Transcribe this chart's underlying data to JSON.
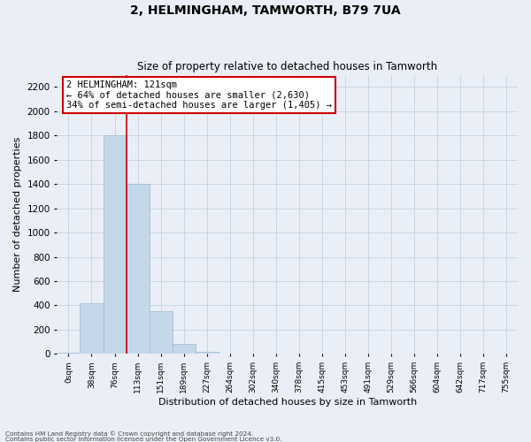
{
  "title": "2, HELMINGHAM, TAMWORTH, B79 7UA",
  "subtitle": "Size of property relative to detached houses in Tamworth",
  "xlabel": "Distribution of detached houses by size in Tamworth",
  "ylabel": "Number of detached properties",
  "bar_values": [
    10,
    420,
    1800,
    1400,
    350,
    80,
    20,
    5,
    0,
    0,
    0,
    0,
    0,
    0,
    0,
    0,
    0,
    0,
    0,
    0
  ],
  "x_labels": [
    "0sqm",
    "38sqm",
    "76sqm",
    "113sqm",
    "151sqm",
    "189sqm",
    "227sqm",
    "264sqm",
    "302sqm",
    "340sqm",
    "378sqm",
    "415sqm",
    "453sqm",
    "491sqm",
    "529sqm",
    "566sqm",
    "604sqm",
    "642sqm",
    "717sqm",
    "755sqm"
  ],
  "bar_color": "#c5d8ea",
  "bar_edgecolor": "#9ab8d0",
  "grid_color": "#ccd6e4",
  "vline_position": 2.5,
  "vline_color": "#cc0000",
  "annotation_text": "2 HELMINGHAM: 121sqm\n← 64% of detached houses are smaller (2,630)\n34% of semi-detached houses are larger (1,405) →",
  "annotation_box_facecolor": "#ffffff",
  "annotation_box_edgecolor": "#cc0000",
  "ylim": [
    0,
    2300
  ],
  "yticks": [
    0,
    200,
    400,
    600,
    800,
    1000,
    1200,
    1400,
    1600,
    1800,
    2000,
    2200
  ],
  "footer_line1": "Contains HM Land Registry data © Crown copyright and database right 2024.",
  "footer_line2": "Contains public sector information licensed under the Open Government Licence v3.0.",
  "bg_color": "#eaeff7",
  "plot_bg_color": "#eaeff7",
  "title_fontsize": 10,
  "subtitle_fontsize": 8.5,
  "ylabel_fontsize": 8,
  "xlabel_fontsize": 8,
  "ytick_fontsize": 7.5,
  "xtick_fontsize": 6.5
}
